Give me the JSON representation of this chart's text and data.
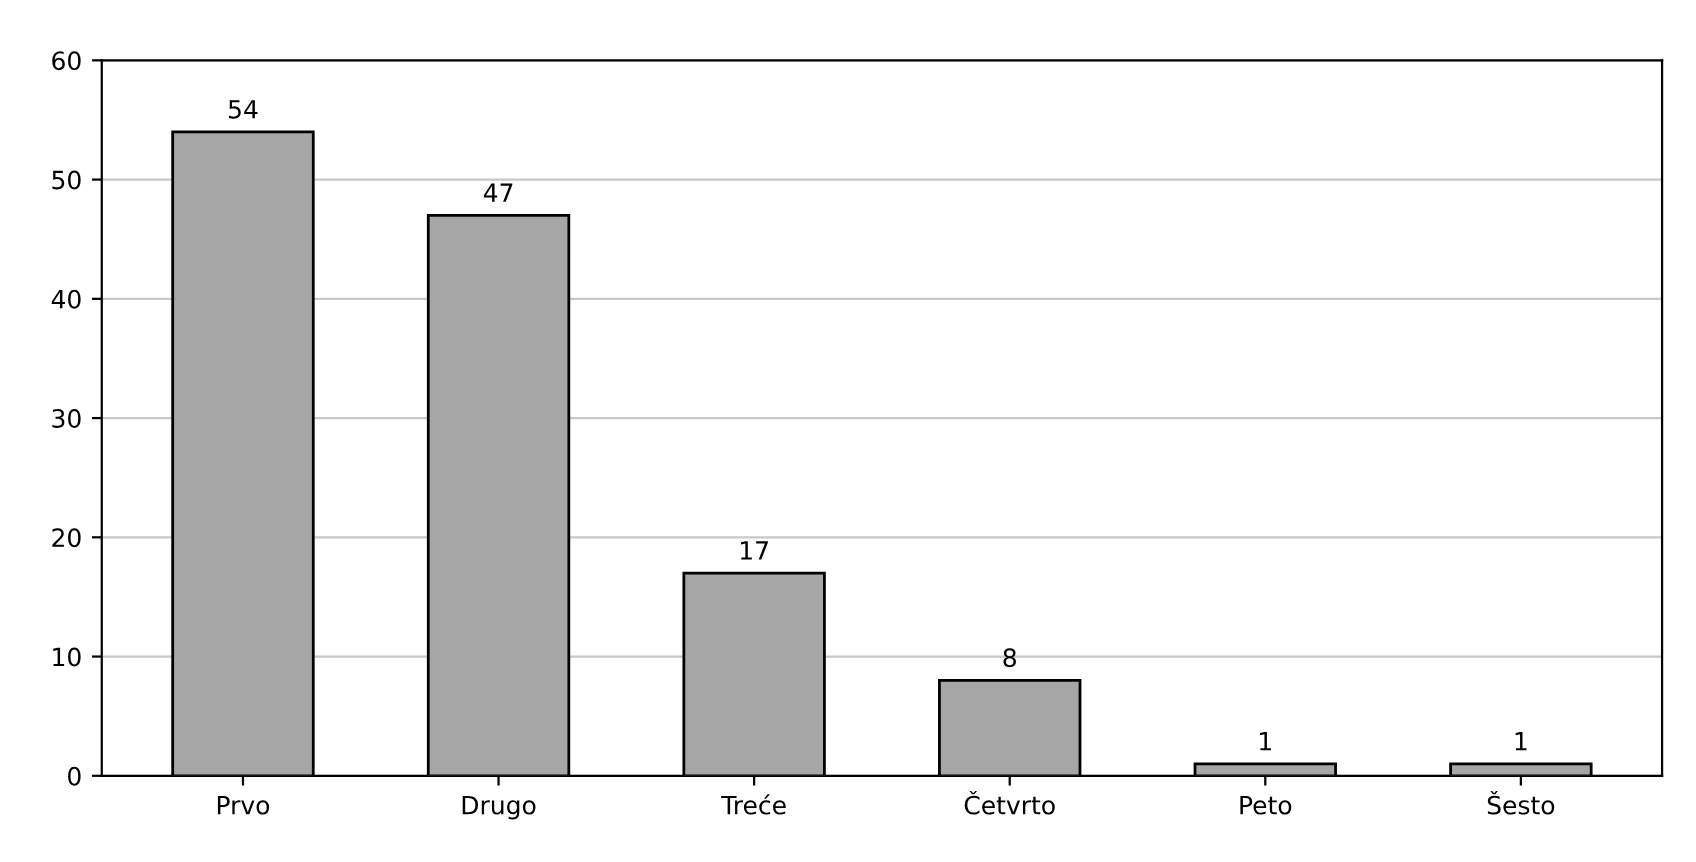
{
  "chart_data": {
    "type": "bar",
    "categories": [
      "Prvo",
      "Drugo",
      "Treće",
      "Četvrto",
      "Peto",
      "Šesto"
    ],
    "values": [
      54,
      47,
      17,
      8,
      1,
      1
    ],
    "color": "#a6a6a6",
    "ylim": [
      0,
      60
    ],
    "yticks": [
      0,
      10,
      20,
      30,
      40,
      50,
      60
    ],
    "grid": "y",
    "data_labels": true
  }
}
